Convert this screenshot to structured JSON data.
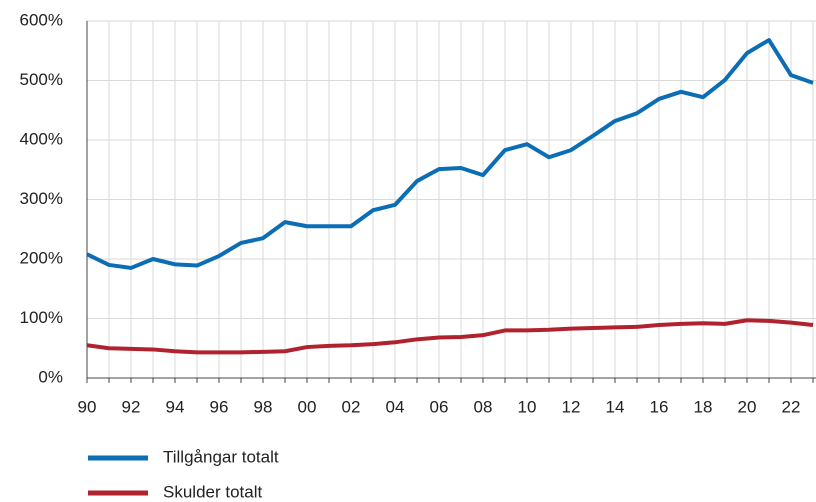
{
  "chart_data": {
    "type": "line",
    "categories": [
      "90",
      null,
      "92",
      null,
      "94",
      null,
      "96",
      null,
      "98",
      null,
      "00",
      null,
      "02",
      null,
      "04",
      null,
      "06",
      null,
      "08",
      null,
      "10",
      null,
      "12",
      null,
      "14",
      null,
      "16",
      null,
      "18",
      null,
      "20",
      null,
      "22",
      null
    ],
    "series": [
      {
        "name": "Tillgångar totalt",
        "color": "#0b6db3",
        "values": [
          208,
          190,
          185,
          200,
          191,
          189,
          205,
          227,
          235,
          262,
          255,
          255,
          255,
          282,
          291,
          331,
          351,
          353,
          341,
          383,
          393,
          371,
          383,
          407,
          432,
          445,
          469,
          481,
          472,
          501,
          546,
          568,
          509,
          496
        ]
      },
      {
        "name": "Skulder totalt",
        "color": "#b0232e",
        "values": [
          55,
          50,
          49,
          48,
          45,
          43,
          43,
          43,
          44,
          45,
          52,
          54,
          55,
          57,
          60,
          65,
          68,
          69,
          72,
          80,
          80,
          81,
          83,
          84,
          85,
          86,
          89,
          91,
          92,
          91,
          97,
          96,
          93,
          89
        ]
      }
    ],
    "ylim": [
      0,
      600
    ],
    "yticks": [
      {
        "value": 0,
        "label": "0%"
      },
      {
        "value": 100,
        "label": "100%"
      },
      {
        "value": 200,
        "label": "200%"
      },
      {
        "value": 300,
        "label": "300%"
      },
      {
        "value": 400,
        "label": "400%"
      },
      {
        "value": 500,
        "label": "500%"
      },
      {
        "value": 600,
        "label": "600%"
      }
    ],
    "grid": true
  }
}
